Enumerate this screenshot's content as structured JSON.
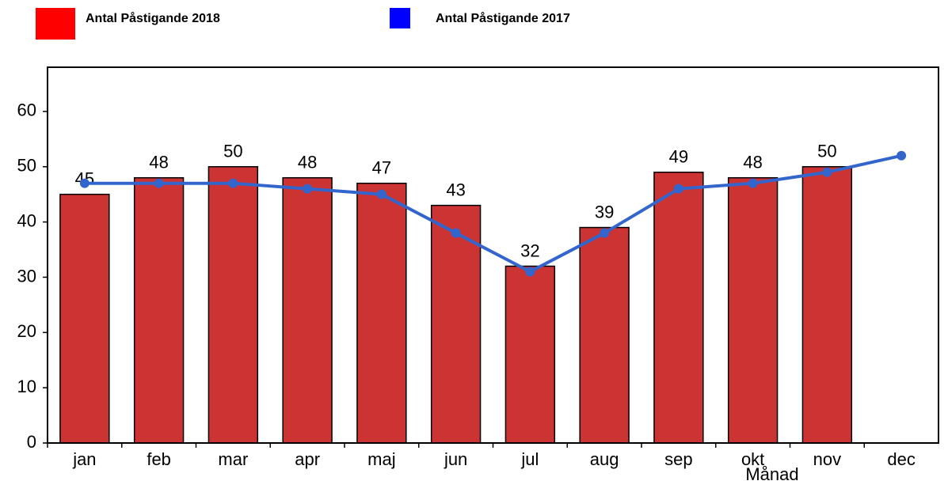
{
  "chart_data": {
    "type": "bar",
    "x_label": "Månad",
    "categories": [
      "jan",
      "feb",
      "mar",
      "apr",
      "maj",
      "jun",
      "jul",
      "aug",
      "sep",
      "okt",
      "nov",
      "dec"
    ],
    "series": [
      {
        "name": "Antal Påstigande 2018",
        "type": "bar",
        "color": "#cc3333",
        "legend_color": "#ff0000",
        "values": [
          45,
          48,
          50,
          48,
          47,
          43,
          32,
          39,
          49,
          48,
          50,
          null
        ]
      },
      {
        "name": "Antal Påstigande 2017",
        "type": "line",
        "color": "#3366cc",
        "legend_color": "#0000ff",
        "values": [
          47,
          47,
          47,
          46,
          45,
          38,
          31,
          38,
          46,
          47,
          49,
          52
        ]
      }
    ],
    "ylim": [
      0,
      68
    ],
    "yticks": [
      0,
      10,
      20,
      30,
      40,
      50,
      60
    ],
    "grid": false
  }
}
